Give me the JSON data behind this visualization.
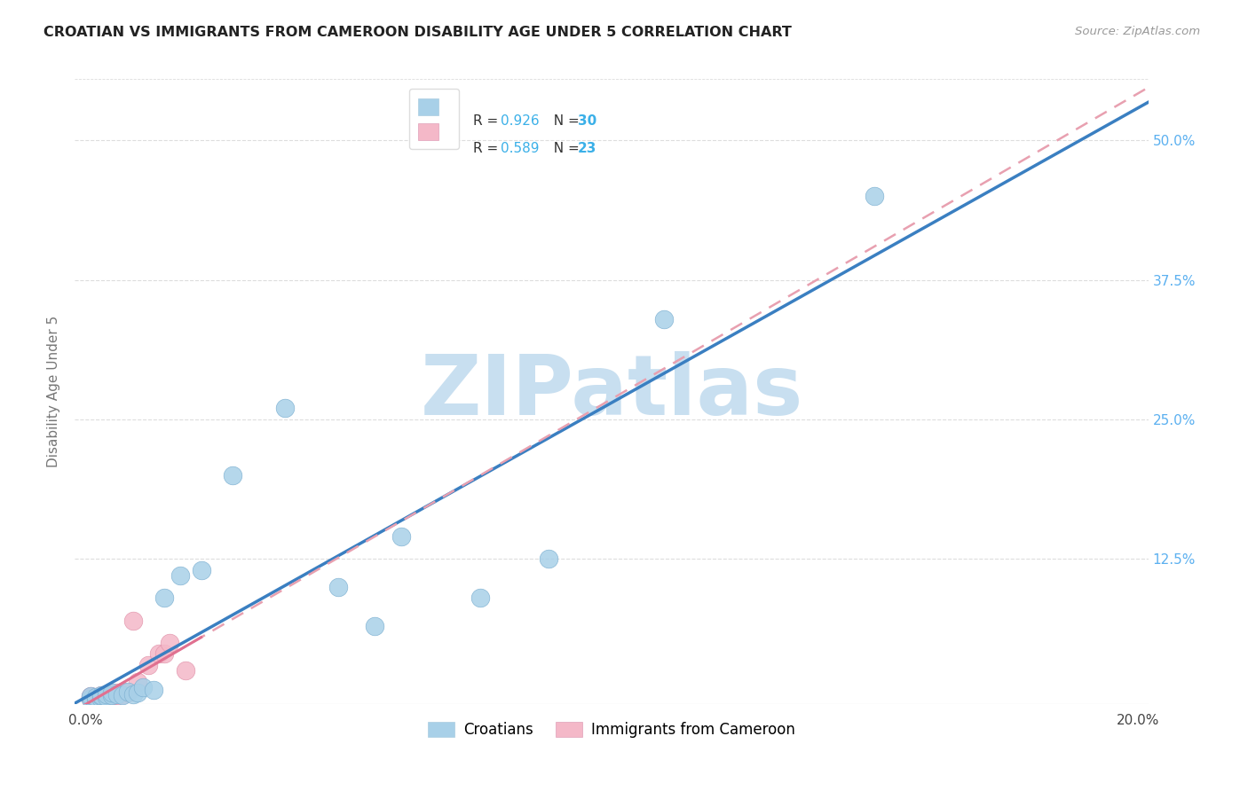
{
  "title": "CROATIAN VS IMMIGRANTS FROM CAMEROON DISABILITY AGE UNDER 5 CORRELATION CHART",
  "source": "Source: ZipAtlas.com",
  "ylabel": "Disability Age Under 5",
  "xlim": [
    0.0,
    0.2
  ],
  "ylim": [
    0.0,
    0.55
  ],
  "croatians_R": 0.926,
  "croatians_N": 30,
  "cameroon_R": 0.589,
  "cameroon_N": 23,
  "blue_scatter_color": "#A8D0E8",
  "blue_line_color": "#3A7FC1",
  "pink_scatter_color": "#F4B8C8",
  "pink_line_color": "#E07090",
  "pink_dash_color": "#E8A0B0",
  "grid_color": "#DDDDDD",
  "watermark_color": "#C8DFF0",
  "right_tick_color": "#5BB0F0",
  "croatians_x": [
    0.001,
    0.001,
    0.002,
    0.002,
    0.003,
    0.003,
    0.003,
    0.004,
    0.004,
    0.005,
    0.005,
    0.006,
    0.007,
    0.008,
    0.009,
    0.01,
    0.011,
    0.013,
    0.015,
    0.018,
    0.022,
    0.028,
    0.038,
    0.048,
    0.055,
    0.06,
    0.075,
    0.088,
    0.11,
    0.15
  ],
  "croatians_y": [
    0.0,
    0.002,
    0.0,
    0.001,
    0.0,
    0.002,
    0.003,
    0.001,
    0.004,
    0.003,
    0.005,
    0.004,
    0.003,
    0.006,
    0.004,
    0.005,
    0.01,
    0.008,
    0.09,
    0.11,
    0.115,
    0.2,
    0.26,
    0.1,
    0.065,
    0.145,
    0.09,
    0.125,
    0.34,
    0.45
  ],
  "cameroon_x": [
    0.001,
    0.001,
    0.001,
    0.002,
    0.002,
    0.003,
    0.003,
    0.004,
    0.004,
    0.005,
    0.005,
    0.006,
    0.006,
    0.007,
    0.007,
    0.008,
    0.009,
    0.01,
    0.012,
    0.014,
    0.015,
    0.016,
    0.019
  ],
  "cameroon_y": [
    0.0,
    0.001,
    0.002,
    0.0,
    0.001,
    0.002,
    0.003,
    0.001,
    0.003,
    0.002,
    0.004,
    0.003,
    0.005,
    0.004,
    0.006,
    0.005,
    0.07,
    0.015,
    0.03,
    0.04,
    0.04,
    0.05,
    0.025
  ]
}
